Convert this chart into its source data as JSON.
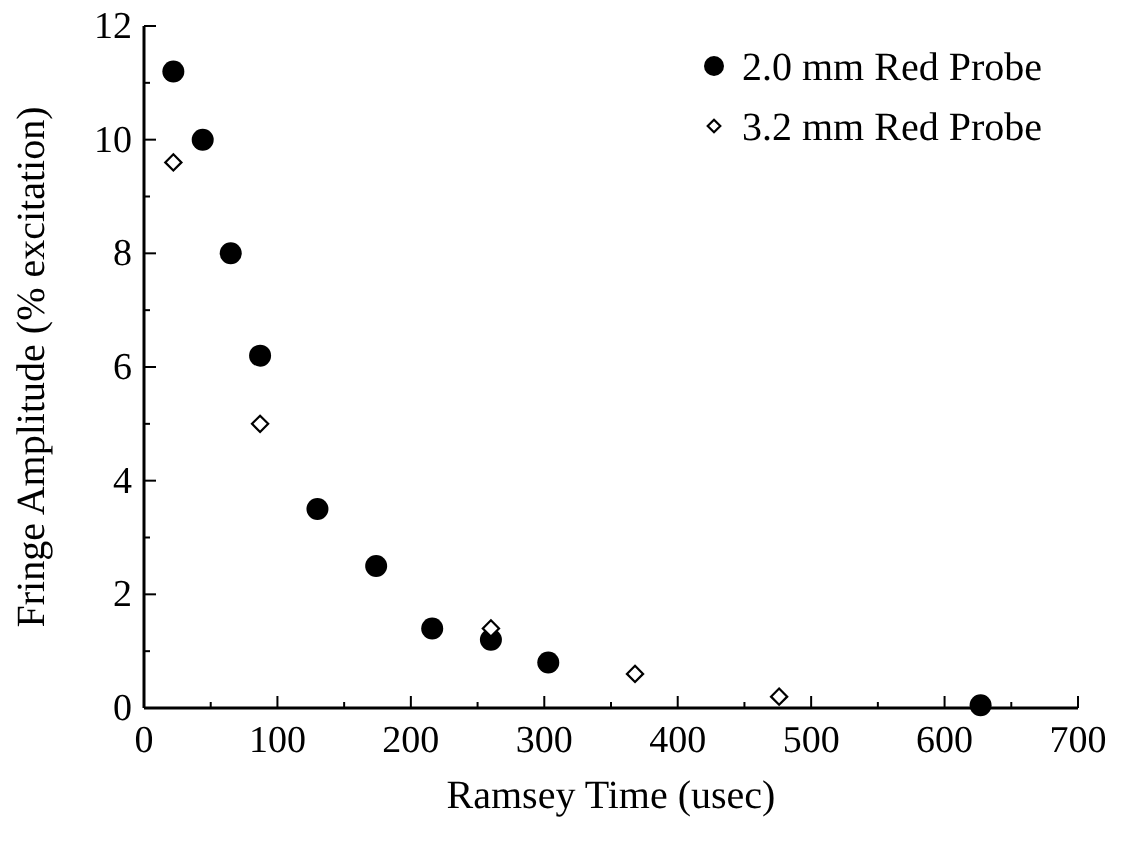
{
  "chart_data": {
    "type": "scatter",
    "xlabel": "Ramsey Time (usec)",
    "ylabel": "Fringe Amplitude (% excitation)",
    "xlim": [
      0,
      700
    ],
    "ylim": [
      0,
      12
    ],
    "xticks": [
      0,
      {
        "value": 50,
        "label": null
      },
      100,
      {
        "value": 150,
        "label": null
      },
      200,
      {
        "value": 250,
        "label": null
      },
      300,
      {
        "value": 350,
        "label": null
      },
      400,
      {
        "value": 450,
        "label": null
      },
      500,
      {
        "value": 550,
        "label": null
      },
      600,
      {
        "value": 650,
        "label": null
      },
      700
    ],
    "yticks": [
      0,
      {
        "value": 1,
        "label": null
      },
      2,
      {
        "value": 3,
        "label": null
      },
      4,
      {
        "value": 5,
        "label": null
      },
      6,
      {
        "value": 7,
        "label": null
      },
      8,
      {
        "value": 9,
        "label": null
      },
      10,
      {
        "value": 11,
        "label": null
      },
      12
    ],
    "legend": "top right",
    "grid": false,
    "series": [
      {
        "name": "2.0 mm Red Probe",
        "color": "#000000",
        "marker": "circle",
        "x": [
          22,
          44,
          65,
          87,
          130,
          174,
          216,
          260,
          303,
          627
        ],
        "values": [
          11.2,
          10.0,
          8.0,
          6.2,
          3.5,
          2.5,
          1.4,
          1.2,
          0.8,
          0.05
        ]
      },
      {
        "name": "3.2 mm Red Probe",
        "color": "#000000",
        "marker": "diamond",
        "x": [
          22,
          87,
          260,
          368,
          476
        ],
        "values": [
          9.6,
          5.0,
          1.4,
          0.6,
          0.2
        ]
      }
    ]
  }
}
